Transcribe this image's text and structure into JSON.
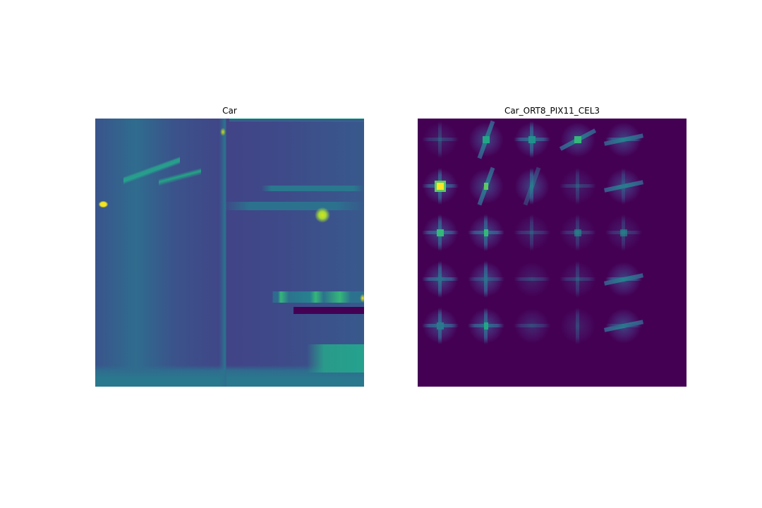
{
  "figure": {
    "left_panel": {
      "title": "Car"
    },
    "right_panel": {
      "title": "Car_ORT8_PIX11_CEL3"
    }
  },
  "colors": {
    "background": "#ffffff",
    "hog_background": "#440154",
    "colormap": "viridis"
  }
}
